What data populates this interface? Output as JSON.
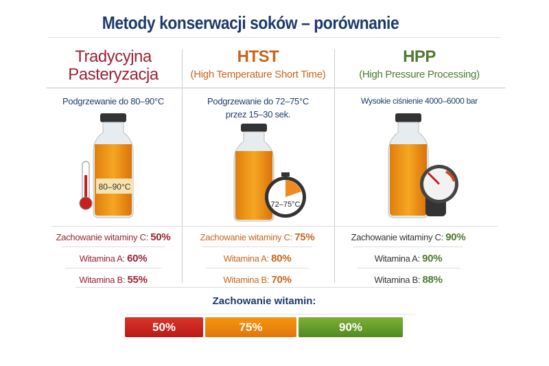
{
  "title": "Metody konserwacji soków – porównanie",
  "colors": {
    "red": "#9b2335",
    "orange": "#c8651b",
    "green": "#4e7a30",
    "navy": "#1d3a6b"
  },
  "methods": [
    {
      "name": "Tradycyjna Pasteryzacja",
      "subtitle": "",
      "desc": [
        "Podgrzewanie do 80–90°C"
      ],
      "bottle_label": "80–90°C",
      "icon": "thermometer-icon",
      "vitamins": [
        {
          "label": "Zachowanie witaminy C:",
          "value": "50%"
        },
        {
          "label": "Witamina A:",
          "value": "60%"
        },
        {
          "label": "Witamina B:",
          "value": "55%"
        }
      ]
    },
    {
      "name": "HTST",
      "subtitle": "(High Temperature Short Time)",
      "desc": [
        "Podgrzewanie do 72–75°C",
        "przez 15–30 sek."
      ],
      "bottle_label": "72–75°C",
      "icon": "stopwatch-icon",
      "vitamins": [
        {
          "label": "Zachowanie witaminy C:",
          "value": "75%"
        },
        {
          "label": "Witamina A:",
          "value": "80%"
        },
        {
          "label": "Witamina B:",
          "value": "70%"
        }
      ]
    },
    {
      "name": "HPP",
      "subtitle": "(High Pressure Processing)",
      "desc": [
        "Wysokie ciśnienie 4000–6000 bar"
      ],
      "bottle_label": "",
      "icon": "pressure-gauge-icon",
      "vitamins": [
        {
          "label": "Zachowanie witaminy C:",
          "value": "90%"
        },
        {
          "label": "Witamina A:",
          "value": "90%"
        },
        {
          "label": "Witamina B:",
          "value": "88%"
        }
      ]
    }
  ],
  "summary": {
    "title": "Zachowanie witamin:",
    "bars": [
      {
        "label": "50%",
        "value": 50
      },
      {
        "label": "75%",
        "value": 75
      },
      {
        "label": "90%",
        "value": 90
      }
    ]
  }
}
